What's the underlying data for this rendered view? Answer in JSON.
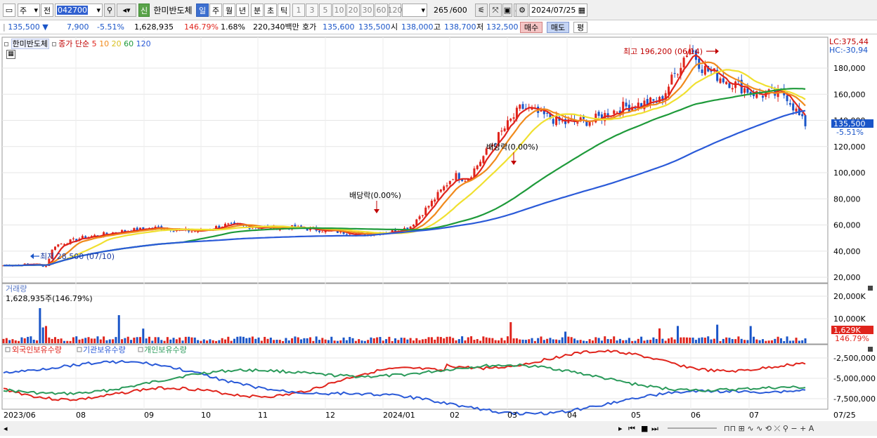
{
  "toolbar": {
    "type_label": "주",
    "prev_label": "전",
    "code": "042700",
    "stock_name": "한미반도체",
    "shin_label": "신",
    "periods": [
      "일",
      "주",
      "월",
      "년",
      "분",
      "초",
      "틱"
    ],
    "minutes": [
      "1",
      "3",
      "5",
      "10",
      "20",
      "30",
      "60",
      "120"
    ],
    "count": "265",
    "count_total": "/600",
    "date": "2024/07/25"
  },
  "info": {
    "price": "135,500",
    "change": "7,900",
    "change_pct": "-5.51%",
    "volume": "1,628,935",
    "volume_ratio": "146.79%",
    "turnover": "1.68%",
    "amount": "220,340백만",
    "hoga_label": "호가",
    "ask": "135,600",
    "bid": "135,500",
    "open_label": "시",
    "open": "138,000",
    "high_label": "고",
    "high": "138,700",
    "low_label": "저",
    "low": "132,500",
    "buy_label": "매수",
    "sell_label": "매도",
    "avg_label": "평"
  },
  "price_panel": {
    "stock_label": "한미반도체",
    "ma_label": "종가 단순",
    "ma_periods": [
      "5",
      "10",
      "20",
      "60",
      "120"
    ],
    "lc": "LC:375,44",
    "hc": "HC:-30,94",
    "y_ticks": [
      "180,000",
      "160,000",
      "140,000",
      "120,000",
      "100,000",
      "80,000",
      "60,000",
      "40,000",
      "20,000"
    ],
    "current_price": "135,500",
    "current_pct": "-5.51%",
    "high_annotation": "최고 196,200 (06/14)",
    "low_annotation": "최저 28,500 (07/10)",
    "dividend1": "배당락(0.00%)",
    "dividend2": "배당락(0.00%)"
  },
  "volume_panel": {
    "title": "거래량",
    "value": "1,628,935주(146.79%)",
    "y_ticks": [
      "20,000K",
      "10,000K"
    ],
    "current": "1,629K",
    "current_pct": "146.79%"
  },
  "holding_panel": {
    "labels": [
      "외국인보유수량",
      "기관보유수량",
      "개인보유수량"
    ],
    "y_ticks": [
      "-2,500,000",
      "-5,000,000",
      "-7,500,000"
    ]
  },
  "x_axis": [
    "2023/06",
    "08",
    "09",
    "10",
    "11",
    "12",
    "2024/01",
    "02",
    "03",
    "04",
    "05",
    "06",
    "07",
    "07/25"
  ],
  "colors": {
    "ma5": "#e0241c",
    "ma10": "#f08a1c",
    "ma20": "#f0e030",
    "ma60": "#1e9a3a",
    "ma120": "#2a5ad8",
    "up": "#e0241c",
    "down": "#1a55c8",
    "foreign": "#e0241c",
    "inst": "#2a5ad8",
    "indiv": "#2a9a5a"
  }
}
